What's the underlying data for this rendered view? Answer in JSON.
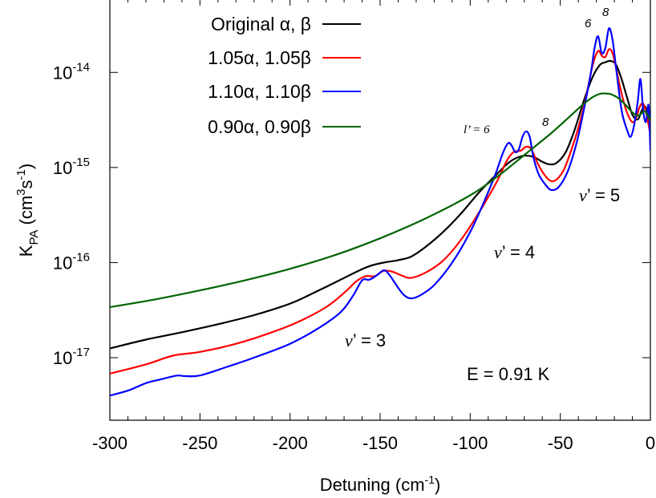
{
  "chart_data": {
    "type": "line",
    "xlabel": "Detuning (cm",
    "xlabel_sup": "-1",
    "xlabel_end": ")",
    "ylabel_main": "K",
    "ylabel_sub": "PA",
    "ylabel_unit_a": " (cm",
    "ylabel_sup_a": "3",
    "ylabel_unit_b": "s",
    "ylabel_sup_b": "-1",
    "ylabel_end": ")",
    "xlim": [
      -300,
      0
    ],
    "ylim": [
      2.2e-18,
      6e-14
    ],
    "yscale": "log",
    "x_ticks": [
      {
        "value": -300,
        "label": "-300"
      },
      {
        "value": -250,
        "label": "-250"
      },
      {
        "value": -200,
        "label": "-200"
      },
      {
        "value": -150,
        "label": "-150"
      },
      {
        "value": -100,
        "label": "-100"
      },
      {
        "value": -50,
        "label": "-50"
      },
      {
        "value": 0,
        "label": "0"
      }
    ],
    "y_ticks": [
      {
        "value": 1e-17,
        "base": "10",
        "exp": "-17"
      },
      {
        "value": 1e-16,
        "base": "10",
        "exp": "-16"
      },
      {
        "value": 1e-15,
        "base": "10",
        "exp": "-15"
      },
      {
        "value": 1e-14,
        "base": "10",
        "exp": "-14"
      }
    ],
    "legend_position": "top-left",
    "series": [
      {
        "name": "Original α, β",
        "color": "#000000",
        "x": [
          -300,
          -280,
          -260,
          -240,
          -220,
          -200,
          -185,
          -172,
          -162,
          -155,
          -148,
          -140,
          -133,
          -125,
          -115,
          -105,
          -95,
          -85,
          -78,
          -72,
          -68,
          -64,
          -60,
          -56,
          -52,
          -47,
          -42,
          -37,
          -32,
          -28,
          -25,
          -22,
          -19,
          -16,
          -13,
          -10,
          -7,
          -5,
          -3,
          -1,
          0
        ],
        "y": [
          1.25e-17,
          1.55e-17,
          1.85e-17,
          2.25e-17,
          2.8e-17,
          3.7e-17,
          5e-17,
          6.6e-17,
          8.2e-17,
          9.3e-17,
          1e-16,
          1.06e-16,
          1.15e-16,
          1.45e-16,
          2.1e-16,
          3.3e-16,
          5.5e-16,
          8.6e-16,
          1.15e-15,
          1.31e-15,
          1.33e-15,
          1.27e-15,
          1.15e-15,
          1.08e-15,
          1.12e-15,
          1.45e-15,
          2.5e-15,
          5e-15,
          9e-15,
          1.2e-14,
          1.28e-14,
          1.32e-14,
          1.2e-14,
          8.5e-15,
          5.5e-15,
          3.6e-15,
          3.2e-15,
          3.9e-15,
          4.4e-15,
          3.3e-15,
          2.6e-15
        ]
      },
      {
        "name": "1.05α, 1.05β",
        "color": "#ff0000",
        "x": [
          -300,
          -280,
          -265,
          -250,
          -230,
          -210,
          -195,
          -180,
          -170,
          -163,
          -158,
          -153,
          -148,
          -143,
          -138,
          -133,
          -125,
          -115,
          -105,
          -95,
          -85,
          -80,
          -76,
          -72,
          -69,
          -66,
          -62,
          -58,
          -55,
          -52,
          -48,
          -44,
          -40,
          -36,
          -32,
          -29,
          -27,
          -25,
          -23,
          -21,
          -19,
          -16,
          -13,
          -10,
          -8,
          -6,
          -4,
          -2,
          0
        ],
        "y": [
          6.8e-18,
          8.5e-18,
          1.05e-17,
          1.15e-17,
          1.4e-17,
          1.85e-17,
          2.4e-17,
          3.4e-17,
          4.8e-17,
          6.4e-17,
          7.2e-17,
          7.2e-17,
          8.2e-17,
          8e-17,
          7.3e-17,
          6.9e-17,
          7.8e-17,
          1.05e-16,
          1.75e-16,
          3.4e-16,
          7.2e-16,
          1.15e-15,
          1.45e-15,
          1.5e-15,
          1.65e-15,
          1.55e-15,
          1.05e-15,
          8e-16,
          7.2e-16,
          7.5e-16,
          9.5e-16,
          1.5e-15,
          2.6e-15,
          5.2e-15,
          1.2e-14,
          1.68e-14,
          1.5e-14,
          1.45e-14,
          1.75e-14,
          1.6e-14,
          1.1e-14,
          6e-15,
          3.8e-15,
          3e-15,
          3.3e-15,
          4.3e-15,
          4.7e-15,
          3.5e-15,
          2.2e-15
        ]
      },
      {
        "name": "1.10α, 1.10β",
        "color": "#0000ff",
        "x": [
          -300,
          -290,
          -280,
          -272,
          -266,
          -262,
          -258,
          -250,
          -235,
          -220,
          -200,
          -185,
          -172,
          -165,
          -160,
          -156,
          -152,
          -148,
          -145,
          -141,
          -137,
          -133,
          -128,
          -120,
          -110,
          -100,
          -92,
          -86,
          -82,
          -79,
          -77,
          -75,
          -73,
          -71,
          -69,
          -67,
          -65,
          -62,
          -58,
          -55,
          -51,
          -46,
          -41,
          -37,
          -33,
          -31,
          -29,
          -27,
          -25,
          -23,
          -21,
          -19,
          -16,
          -13,
          -11,
          -9,
          -7,
          -5.5,
          -4,
          -2.5,
          -1,
          0
        ],
        "y": [
          4e-18,
          4.5e-18,
          5.4e-18,
          5.9e-18,
          6.3e-18,
          6.5e-18,
          6.4e-18,
          6.5e-18,
          8e-18,
          1e-17,
          1.4e-17,
          2e-17,
          3e-17,
          4.5e-17,
          6.5e-17,
          6.6e-17,
          7.3e-17,
          8.3e-17,
          7.5e-17,
          5.8e-17,
          4.6e-17,
          4.2e-17,
          4.5e-17,
          5.8e-17,
          1e-16,
          2.1e-16,
          4.5e-16,
          8.5e-16,
          1.4e-15,
          1.8e-15,
          1.7e-15,
          1.45e-15,
          1.55e-15,
          2.1e-15,
          2.4e-15,
          2.1e-15,
          1.3e-15,
          8.5e-16,
          6.5e-16,
          5.8e-16,
          6.2e-16,
          9e-16,
          1.8e-15,
          4e-15,
          1e-14,
          1.8e-14,
          2.4e-14,
          1.6e-14,
          1.8e-14,
          2.9e-14,
          2.2e-14,
          1.1e-14,
          4e-15,
          2.5e-15,
          2.1e-15,
          2.8e-15,
          5e-15,
          8.5e-15,
          4e-15,
          3e-15,
          4.5e-15,
          1.5e-15
        ]
      },
      {
        "name": "0.90α, 0.90β",
        "color": "#006400",
        "x": [
          -300,
          -275,
          -250,
          -225,
          -200,
          -175,
          -150,
          -125,
          -100,
          -85,
          -70,
          -55,
          -45,
          -38,
          -32,
          -28,
          -25,
          -22,
          -18,
          -14,
          -10,
          -7,
          -5,
          -3,
          -1,
          0
        ],
        "y": [
          3.4e-17,
          4.1e-17,
          5.1e-17,
          6.5e-17,
          8.6e-17,
          1.2e-16,
          1.8e-16,
          2.9e-16,
          5.1e-16,
          8e-16,
          1.35e-15,
          2.3e-15,
          3.4e-15,
          4.5e-15,
          5.5e-15,
          5.95e-15,
          6e-15,
          5.9e-15,
          5.4e-15,
          4.6e-15,
          3.8e-15,
          3.5e-15,
          3.7e-15,
          3.9e-15,
          3.4e-15,
          3.1e-15
        ]
      }
    ],
    "annotations": {
      "v3_italic": "v",
      "v3_rest": "’ = 3",
      "v4_italic": "v",
      "v4_rest": "’ = 4",
      "v5_italic": "v",
      "v5_rest": "’ = 5",
      "lprime": "l’ = 6",
      "l_8a": "8",
      "l_6b": "6",
      "l_8b": "8",
      "energy": "E = 0.91 K"
    }
  }
}
